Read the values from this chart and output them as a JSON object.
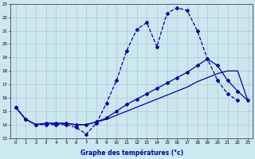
{
  "curve1_x": [
    0,
    1,
    2,
    3,
    4,
    5,
    6,
    7,
    8,
    9,
    10,
    11,
    12,
    13,
    14,
    15,
    16,
    17,
    18,
    19,
    20,
    21,
    22
  ],
  "curve1_y": [
    15.3,
    14.4,
    14.0,
    14.0,
    14.0,
    14.0,
    13.8,
    13.3,
    14.1,
    15.6,
    17.3,
    19.5,
    21.1,
    21.6,
    19.8,
    22.3,
    22.7,
    22.5,
    21.0,
    18.9,
    17.3,
    16.3,
    15.8
  ],
  "curve2_x": [
    0,
    1,
    2,
    3,
    4,
    5,
    6,
    7,
    8,
    9,
    10,
    11,
    12,
    13,
    14,
    15,
    16,
    17,
    18,
    19,
    20,
    21,
    22,
    23
  ],
  "curve2_y": [
    15.3,
    14.4,
    14.0,
    14.1,
    14.1,
    14.1,
    14.0,
    14.0,
    14.2,
    14.5,
    15.0,
    15.5,
    15.9,
    16.3,
    16.7,
    17.1,
    17.5,
    17.9,
    18.4,
    18.9,
    18.4,
    17.3,
    16.5,
    15.8
  ],
  "curve3_x": [
    0,
    1,
    2,
    3,
    4,
    5,
    6,
    7,
    8,
    9,
    10,
    11,
    12,
    13,
    14,
    15,
    16,
    17,
    18,
    19,
    20,
    21,
    22,
    23
  ],
  "curve3_y": [
    15.3,
    14.4,
    14.0,
    14.1,
    14.1,
    14.1,
    14.0,
    14.0,
    14.2,
    14.4,
    14.7,
    15.0,
    15.3,
    15.6,
    15.9,
    16.2,
    16.5,
    16.8,
    17.2,
    17.5,
    17.8,
    18.0,
    18.0,
    15.8
  ],
  "bg_color": "#cce8ef",
  "grid_color": "#aabbcc",
  "line_color": "#0000aa",
  "xlabel": "Graphe des températures (°c)",
  "xlim_min": -0.5,
  "xlim_max": 23.5,
  "ylim_min": 13,
  "ylim_max": 23,
  "yticks": [
    13,
    14,
    15,
    16,
    17,
    18,
    19,
    20,
    21,
    22,
    23
  ],
  "xticks": [
    0,
    1,
    2,
    3,
    4,
    5,
    6,
    7,
    8,
    9,
    10,
    11,
    12,
    13,
    14,
    15,
    16,
    17,
    18,
    19,
    20,
    21,
    22,
    23
  ],
  "marker": "D",
  "markersize": 2.0,
  "linewidth": 0.9,
  "tick_fontsize": 4.0,
  "xlabel_fontsize": 5.5
}
